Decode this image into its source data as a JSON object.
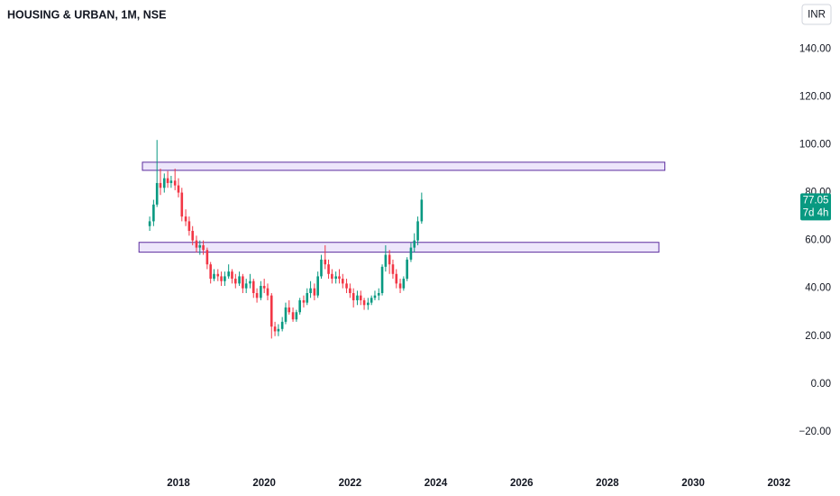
{
  "chart_data": {
    "type": "candlestick",
    "title": "HOUSING & URBAN, 1M, NSE",
    "currency": "INR",
    "countdown": "7d 4h",
    "up_color": "#089981",
    "down_color": "#f23645",
    "zone_color": "#ede6fb",
    "zone_border": "#5b2c9e",
    "x": [
      2017.33,
      2017.42,
      2017.5,
      2017.58,
      2017.67,
      2017.75,
      2017.83,
      2017.92,
      2018,
      2018.08,
      2018.17,
      2018.25,
      2018.33,
      2018.42,
      2018.5,
      2018.58,
      2018.67,
      2018.75,
      2018.83,
      2018.92,
      2019,
      2019.08,
      2019.17,
      2019.25,
      2019.33,
      2019.42,
      2019.5,
      2019.58,
      2019.67,
      2019.75,
      2019.83,
      2019.92,
      2020,
      2020.08,
      2020.17,
      2020.25,
      2020.33,
      2020.42,
      2020.5,
      2020.58,
      2020.67,
      2020.75,
      2020.83,
      2020.92,
      2021,
      2021.08,
      2021.17,
      2021.25,
      2021.33,
      2021.42,
      2021.5,
      2021.58,
      2021.67,
      2021.75,
      2021.83,
      2021.92,
      2022,
      2022.08,
      2022.17,
      2022.25,
      2022.33,
      2022.42,
      2022.5,
      2022.58,
      2022.67,
      2022.75,
      2022.83,
      2022.92,
      2023,
      2023.08,
      2023.17,
      2023.25,
      2023.33,
      2023.42,
      2023.5,
      2023.58,
      2023.67
    ],
    "open": [
      66,
      68,
      75,
      84,
      82,
      86,
      84,
      85,
      83,
      80,
      70,
      68,
      64,
      60,
      57,
      58,
      56,
      50,
      44,
      46,
      45,
      43,
      45,
      47,
      44,
      42,
      45,
      40,
      42,
      43,
      38,
      36,
      41,
      40,
      37,
      24,
      22,
      23,
      26,
      32,
      30,
      27,
      30,
      35,
      34,
      38,
      40,
      37,
      45,
      52,
      50,
      46,
      44,
      45,
      44,
      42,
      40,
      38,
      35,
      37,
      35,
      33,
      34,
      36,
      37,
      38,
      49,
      54,
      50,
      46,
      42,
      40,
      44,
      52,
      57,
      60,
      68
    ],
    "high": [
      70,
      77,
      102,
      90,
      88,
      89,
      87,
      90,
      86,
      82,
      73,
      70,
      66,
      62,
      60,
      60,
      57,
      51,
      48,
      48,
      47,
      47,
      50,
      48,
      46,
      47,
      46,
      44,
      46,
      44,
      40,
      43,
      44,
      42,
      38,
      26,
      25,
      28,
      34,
      35,
      32,
      31,
      36,
      37,
      40,
      43,
      42,
      47,
      54,
      58,
      52,
      48,
      47,
      48,
      46,
      44,
      42,
      40,
      39,
      39,
      36,
      36,
      37,
      39,
      40,
      50,
      58,
      56,
      52,
      48,
      44,
      45,
      53,
      59,
      63,
      70,
      80
    ],
    "low": [
      64,
      66,
      74,
      79,
      80,
      82,
      82,
      81,
      78,
      68,
      66,
      62,
      58,
      55,
      54,
      54,
      48,
      42,
      43,
      43,
      41,
      41,
      44,
      42,
      40,
      41,
      38,
      38,
      40,
      36,
      34,
      35,
      38,
      35,
      19,
      20,
      20,
      22,
      25,
      29,
      26,
      26,
      29,
      32,
      33,
      36,
      35,
      36,
      44,
      48,
      44,
      42,
      42,
      42,
      40,
      38,
      36,
      32,
      33,
      33,
      31,
      31,
      33,
      35,
      35,
      37,
      47,
      46,
      44,
      40,
      38,
      39,
      43,
      51,
      55,
      58,
      67
    ],
    "close": [
      68,
      75,
      84,
      82,
      86,
      84,
      85,
      83,
      80,
      70,
      68,
      64,
      60,
      57,
      58,
      56,
      50,
      44,
      46,
      45,
      43,
      45,
      47,
      44,
      42,
      45,
      40,
      42,
      43,
      38,
      36,
      41,
      40,
      37,
      24,
      22,
      23,
      26,
      32,
      30,
      27,
      30,
      35,
      34,
      38,
      40,
      37,
      45,
      52,
      50,
      46,
      44,
      45,
      44,
      42,
      40,
      38,
      35,
      37,
      35,
      33,
      34,
      36,
      37,
      38,
      49,
      54,
      50,
      46,
      42,
      40,
      44,
      52,
      57,
      60,
      68,
      77.05
    ],
    "xlim": [
      2013.84,
      2032.33
    ],
    "xticks": [
      2018,
      2020,
      2022,
      2024,
      2026,
      2028,
      2030,
      2032
    ],
    "ylim": [
      -35.5,
      160.5
    ],
    "yticks": [
      {
        "value": 140,
        "label": "140.00"
      },
      {
        "value": 120,
        "label": "120.00"
      },
      {
        "value": 100,
        "label": "100.00"
      },
      {
        "value": 80,
        "label": "80.00"
      },
      {
        "value": 60,
        "label": "60.00"
      },
      {
        "value": 40,
        "label": "40.00"
      },
      {
        "value": 20,
        "label": "20.00"
      },
      {
        "value": 0,
        "label": "0.00"
      },
      {
        "value": -20,
        "label": "−20.00"
      }
    ],
    "zones": [
      {
        "xlim": [
          2017.16,
          2029.34
        ],
        "ylim": [
          89.3,
          92.7
        ]
      },
      {
        "xlim": [
          2017.08,
          2029.2
        ],
        "ylim": [
          55.1,
          59.2
        ]
      }
    ]
  }
}
